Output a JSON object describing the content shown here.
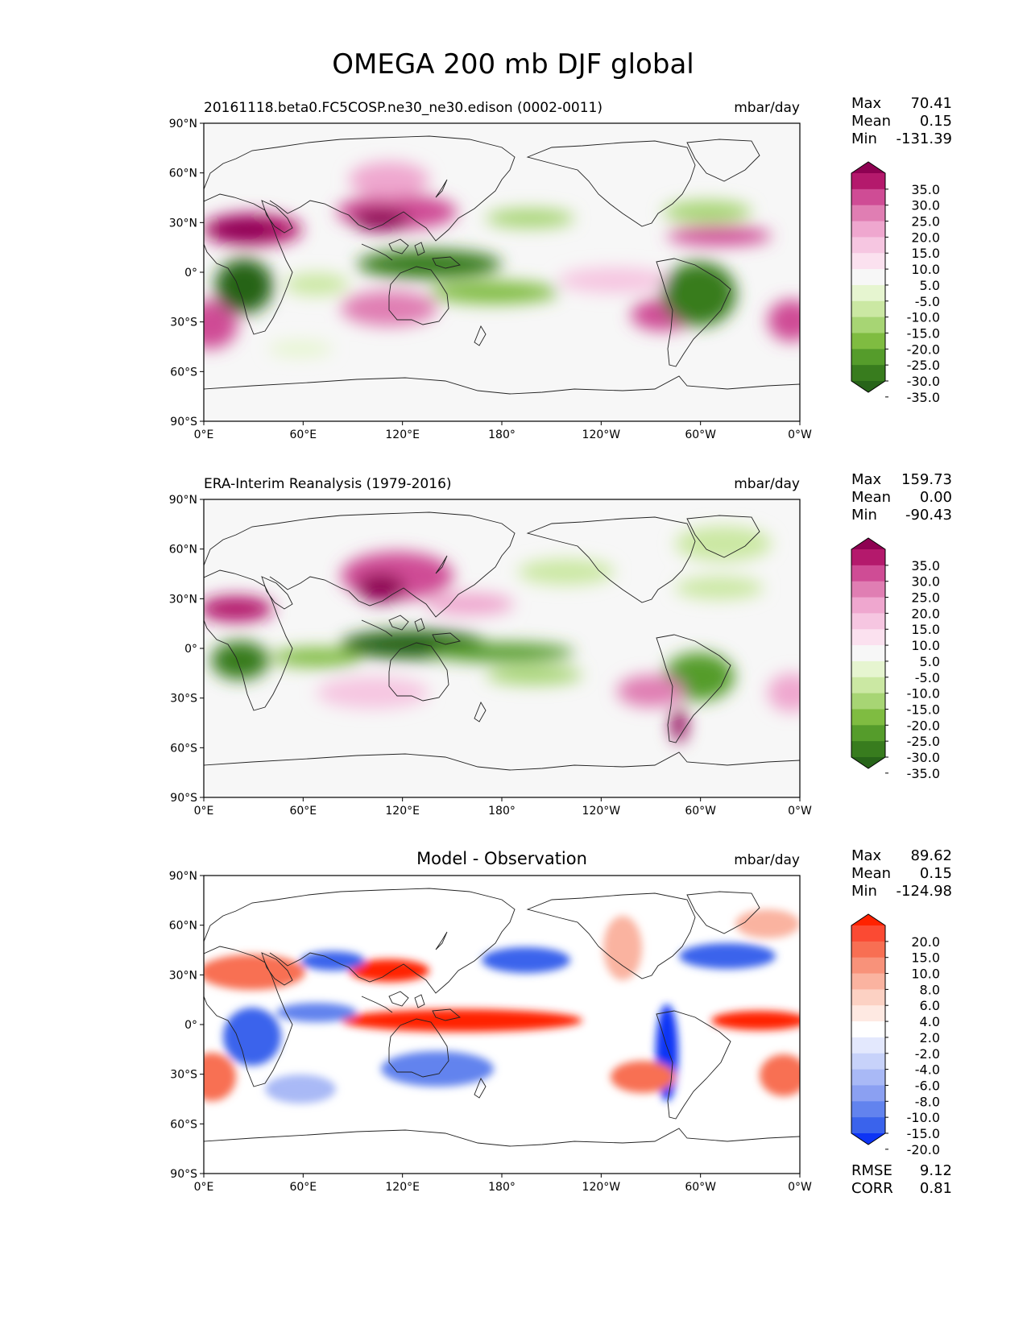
{
  "figure": {
    "title": "OMEGA 200 mb DJF global"
  },
  "axes": {
    "lat_ticks": [
      "90°N",
      "60°N",
      "30°N",
      "0°",
      "30°S",
      "60°S",
      "90°S"
    ],
    "lon_ticks": [
      "0°E",
      "60°E",
      "120°E",
      "180°",
      "120°W",
      "60°W",
      "0°W"
    ]
  },
  "panels": [
    {
      "id": "test",
      "title_left": "20161118.beta0.FC5COSP.ne30_ne30.edison (0002-0011)",
      "title_center": "",
      "units": "mbar/day",
      "stats": [
        {
          "label": "Max",
          "value": "70.41"
        },
        {
          "label": "Mean",
          "value": "0.15"
        },
        {
          "label": "Min",
          "value": "-131.39"
        }
      ],
      "extra_stats": [],
      "colorbar": {
        "labels": [
          "35.0",
          "30.0",
          "25.0",
          "20.0",
          "15.0",
          "10.0",
          "5.0",
          "-5.0",
          "-10.0",
          "-15.0",
          "-20.0",
          "-25.0",
          "-30.0",
          "-35.0"
        ],
        "colors": [
          "#8e0152",
          "#b4196c",
          "#cf4c95",
          "#e07eb3",
          "#efa7cf",
          "#f6c6e1",
          "#fbe1ef",
          "#f7f7f7",
          "#e6f5d0",
          "#cbe8a3",
          "#a7d574",
          "#7fbc41",
          "#559c2b",
          "#387c1e",
          "#276419"
        ]
      }
    },
    {
      "id": "reference",
      "title_left": "ERA-Interim Reanalysis (1979-2016)",
      "title_center": "",
      "units": "mbar/day",
      "stats": [
        {
          "label": "Max",
          "value": "159.73"
        },
        {
          "label": "Mean",
          "value": "0.00"
        },
        {
          "label": "Min",
          "value": "-90.43"
        }
      ],
      "extra_stats": [],
      "colorbar": {
        "labels": [
          "35.0",
          "30.0",
          "25.0",
          "20.0",
          "15.0",
          "10.0",
          "5.0",
          "-5.0",
          "-10.0",
          "-15.0",
          "-20.0",
          "-25.0",
          "-30.0",
          "-35.0"
        ],
        "colors": [
          "#8e0152",
          "#b4196c",
          "#cf4c95",
          "#e07eb3",
          "#efa7cf",
          "#f6c6e1",
          "#fbe1ef",
          "#f7f7f7",
          "#e6f5d0",
          "#cbe8a3",
          "#a7d574",
          "#7fbc41",
          "#559c2b",
          "#387c1e",
          "#276419"
        ]
      }
    },
    {
      "id": "diff",
      "title_left": "",
      "title_center": "Model - Observation",
      "units": "mbar/day",
      "stats": [
        {
          "label": "Max",
          "value": "89.62"
        },
        {
          "label": "Mean",
          "value": "0.15"
        },
        {
          "label": "Min",
          "value": "-124.98"
        }
      ],
      "extra_stats": [
        {
          "label": "RMSE",
          "value": "9.12"
        },
        {
          "label": "CORR",
          "value": "0.81"
        }
      ],
      "colorbar": {
        "labels": [
          "20.0",
          "15.0",
          "10.0",
          "8.0",
          "6.0",
          "4.0",
          "2.0",
          "-2.0",
          "-4.0",
          "-6.0",
          "-8.0",
          "-10.0",
          "-15.0",
          "-20.0"
        ],
        "colors": [
          "#ff2200",
          "#fb4a33",
          "#f86f53",
          "#f8927a",
          "#fab3a0",
          "#fcd1c3",
          "#fee9e2",
          "#ffffff",
          "#e3e8fd",
          "#c7d2fa",
          "#a9b9f6",
          "#8ba0f2",
          "#6283ee",
          "#3a63ec",
          "#0d34f5"
        ]
      }
    }
  ]
}
